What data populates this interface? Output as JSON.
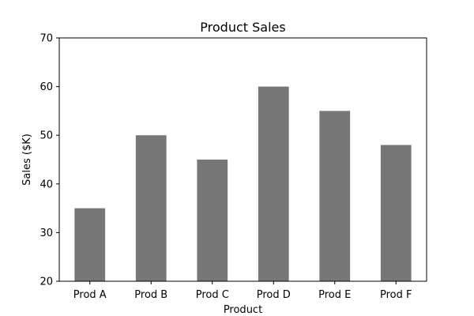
{
  "chart_data": {
    "type": "bar",
    "title": "Product Sales",
    "xlabel": "Product",
    "ylabel": "Sales ($K)",
    "categories": [
      "Prod A",
      "Prod B",
      "Prod C",
      "Prod D",
      "Prod E",
      "Prod F"
    ],
    "values": [
      35,
      50,
      45,
      60,
      55,
      48
    ],
    "ylim": [
      20,
      70
    ],
    "yticks": [
      20,
      30,
      40,
      50,
      60,
      70
    ],
    "ytick_labels": [
      "20",
      "30",
      "40",
      "50",
      "60",
      "70"
    ],
    "bar_color": "#777777",
    "grid": false,
    "legend": "none"
  }
}
